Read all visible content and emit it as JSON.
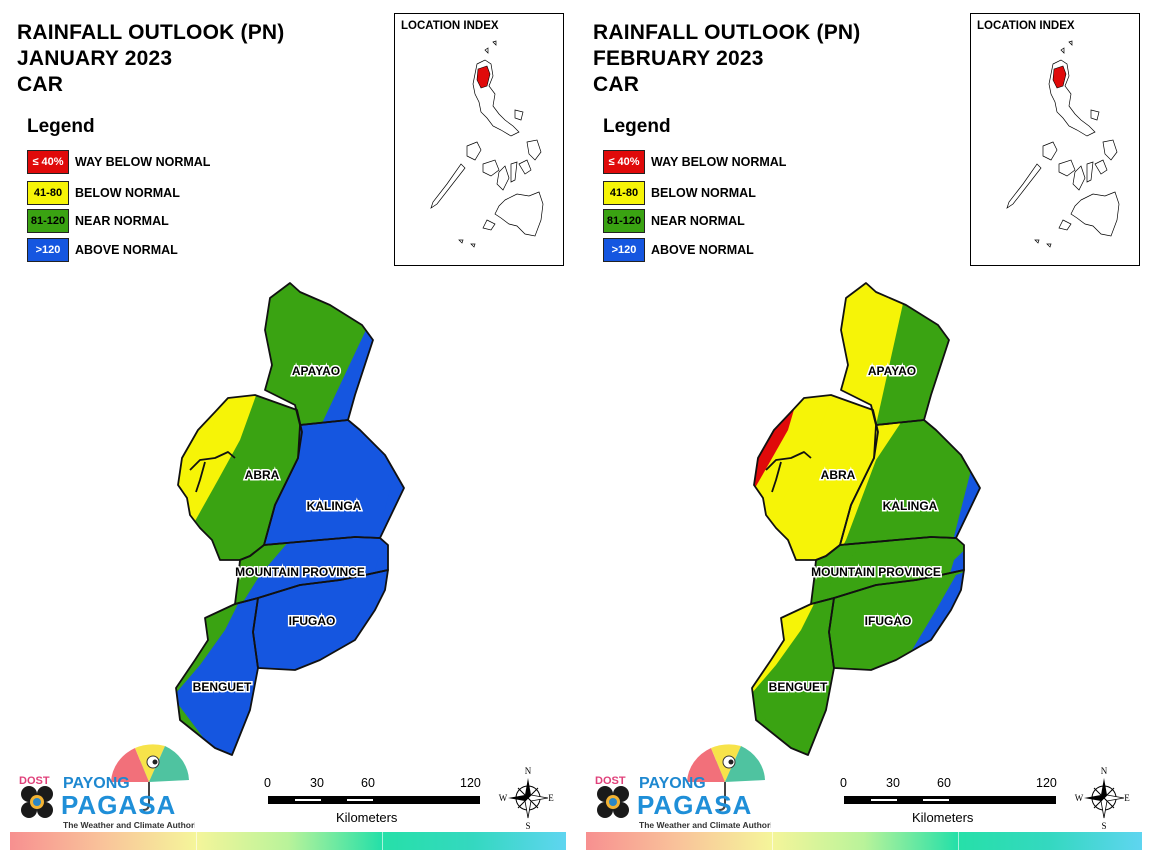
{
  "panels": [
    {
      "title_lines": [
        "RAINFALL OUTLOOK (PN)",
        "JANUARY 2023",
        "CAR"
      ],
      "scheme": {
        "apayao_w": "#3aa312",
        "apayao_e": "#1556e0",
        "abra_w": "#f6f407",
        "abra_e": "#3aa312",
        "abra_red": "#f6f407",
        "kalinga": "#1556e0",
        "mountain": "#1556e0",
        "mountain_w": "#3aa312",
        "ifugao": "#1556e0",
        "benguet": "#1556e0",
        "benguet_w": "#3aa312"
      }
    },
    {
      "title_lines": [
        "RAINFALL OUTLOOK (PN)",
        "FEBRUARY 2023",
        "CAR"
      ],
      "scheme": {
        "apayao_w": "#f6f407",
        "apayao_e": "#3aa312",
        "abra_w": "#f6f407",
        "abra_e": "#f6f407",
        "abra_red": "#e00a0a",
        "kalinga": "#3aa312",
        "mountain": "#3aa312",
        "mountain_w": "#3aa312",
        "ifugao": "#3aa312",
        "benguet": "#3aa312",
        "benguet_w": "#f6f407"
      }
    }
  ],
  "legend": {
    "title": "Legend",
    "items": [
      {
        "range": "≤ 40%",
        "label": "WAY BELOW NORMAL",
        "color": "#e00a0a",
        "text_color": "#ffffff"
      },
      {
        "range": "41-80",
        "label": "BELOW NORMAL",
        "color": "#f6f407",
        "text_color": "#000000"
      },
      {
        "range": "81-120",
        "label": "NEAR NORMAL",
        "color": "#3aa312",
        "text_color": "#000000"
      },
      {
        "range": ">120",
        "label": "ABOVE NORMAL",
        "color": "#1556e0",
        "text_color": "#ffffff"
      }
    ]
  },
  "location_index": {
    "title": "LOCATION INDEX",
    "highlight_color": "#e00a0a"
  },
  "provinces": [
    "APAYAO",
    "ABRA",
    "KALINGA",
    "MOUNTAIN PROVINCE",
    "IFUGAO",
    "BENGUET"
  ],
  "scale": {
    "ticks": [
      "0",
      "30",
      "60",
      "120"
    ],
    "unit": "Kilometers"
  },
  "compass": {
    "n": "N",
    "s": "S",
    "e": "E",
    "w": "W"
  },
  "logo": {
    "dost": "DOST",
    "payong": "PAYONG",
    "pagasa": "PAGASA",
    "tagline": "The Weather and Climate Authority"
  }
}
